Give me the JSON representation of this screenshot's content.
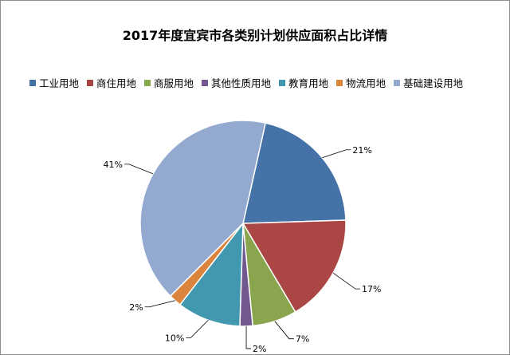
{
  "chart_data": {
    "type": "pie",
    "title": "2017年度宜宾市各类别计划供应面积占比详情",
    "legend_position": "top",
    "slices": [
      {
        "label": "工业用地",
        "value": 21,
        "display": "21%",
        "color": "#4572a7"
      },
      {
        "label": "商住用地",
        "value": 17,
        "display": "17%",
        "color": "#aa4643"
      },
      {
        "label": "商服用地",
        "value": 7,
        "display": "7%",
        "color": "#89a54e"
      },
      {
        "label": "其他性质用地",
        "value": 2,
        "display": "2%",
        "color": "#71588f"
      },
      {
        "label": "教育用地",
        "value": 10,
        "display": "10%",
        "color": "#4198af"
      },
      {
        "label": "物流用地",
        "value": 2,
        "display": "2%",
        "color": "#db843d"
      },
      {
        "label": "基础建设用地",
        "value": 41,
        "display": "41%",
        "color": "#93a9cf"
      }
    ]
  }
}
